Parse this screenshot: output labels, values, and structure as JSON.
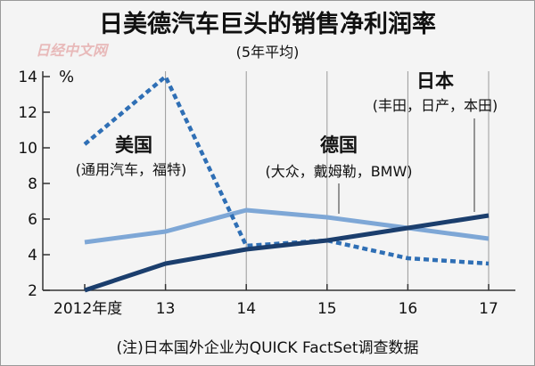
{
  "chart_data": {
    "type": "line",
    "title": "日美德汽车巨头的销售净利润率",
    "subtitle": "(5年平均)",
    "ylabel": "%",
    "ylim": [
      2,
      14
    ],
    "yticks": [
      2,
      4,
      6,
      8,
      10,
      12,
      14
    ],
    "x": [
      2012,
      2013,
      2014,
      2015,
      2016,
      2017
    ],
    "xticklabels": [
      "2012年度",
      "13",
      "14",
      "15",
      "16",
      "17"
    ],
    "grid": "vertical",
    "series": [
      {
        "name": "美国",
        "note": "(通用汽车，福特)",
        "color": "#2f6fb5",
        "style": "dashed",
        "values": [
          10.2,
          14.0,
          4.5,
          4.8,
          3.8,
          3.5
        ]
      },
      {
        "name": "德国",
        "note": "(大众，戴姆勒，BMW)",
        "color": "#7ea7d6",
        "style": "solid",
        "values": [
          4.7,
          5.3,
          6.5,
          6.1,
          5.5,
          4.9
        ]
      },
      {
        "name": "日本",
        "note": "(丰田，日产，本田)",
        "color": "#1b3e6d",
        "style": "solid",
        "values": [
          2.0,
          3.5,
          4.3,
          4.8,
          5.5,
          6.2
        ]
      }
    ],
    "footnote": "(注)日本国外企业为QUICK FactSet调查数据"
  },
  "watermark": "日经中文网"
}
